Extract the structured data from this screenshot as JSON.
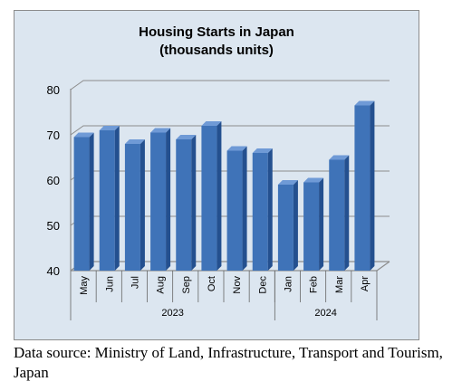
{
  "chart_data": {
    "type": "bar",
    "title": [
      "Housing Starts in Japan",
      "(thousands units)"
    ],
    "categories": [
      "May",
      "Jun",
      "Jul",
      "Aug",
      "Sep",
      "Oct",
      "Nov",
      "Dec",
      "Jan",
      "Feb",
      "Mar",
      "Apr"
    ],
    "category_groups": [
      {
        "label": "2023",
        "count": 8
      },
      {
        "label": "2024",
        "count": 4
      }
    ],
    "values": [
      69.5,
      71,
      68,
      70.5,
      69,
      72,
      66.5,
      66,
      59,
      59.5,
      64.5,
      76.5
    ],
    "yticks": [
      40,
      50,
      60,
      70,
      80
    ],
    "ylim": [
      40,
      80
    ],
    "grid": true,
    "legend": "none",
    "colors": {
      "bar_front": "#3f73b8",
      "bar_side": "#24508f",
      "bar_top": "#6f9ad6",
      "plot_background": "#dce6f0",
      "gridline": "#8c8c8c"
    }
  },
  "source_note": "Data source: Ministry of Land, Infrastructure, Transport and Tourism, Japan"
}
